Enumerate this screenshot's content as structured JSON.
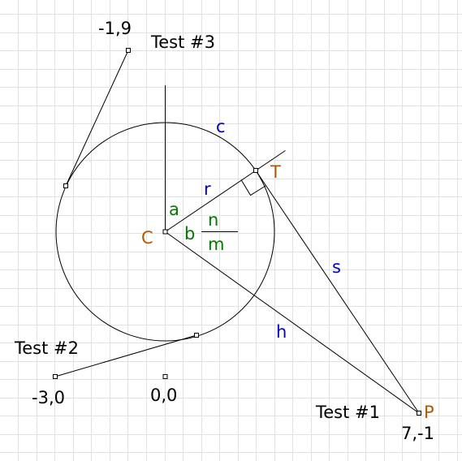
{
  "tests": {
    "test1": "Test #1",
    "test2": "Test #2",
    "test3": "Test #3"
  },
  "coordinates": {
    "origin": "0,0",
    "p": "7,-1",
    "left": "-3,0",
    "top": "-1,9"
  },
  "points": {
    "center": "C",
    "tangent": "T",
    "external": "P"
  },
  "segments": {
    "radius": "r",
    "arc": "c",
    "tangent_length": "s",
    "hypotenuse": "h",
    "angle_a": "a",
    "angle_b": "b",
    "frac_num": "n",
    "frac_den": "m"
  },
  "colors": {
    "label_text": "#000000",
    "segment_label": "#0000c8",
    "angle_label": "#007a00",
    "point_label": "#b15a00",
    "grid": "#e2e2e2"
  }
}
